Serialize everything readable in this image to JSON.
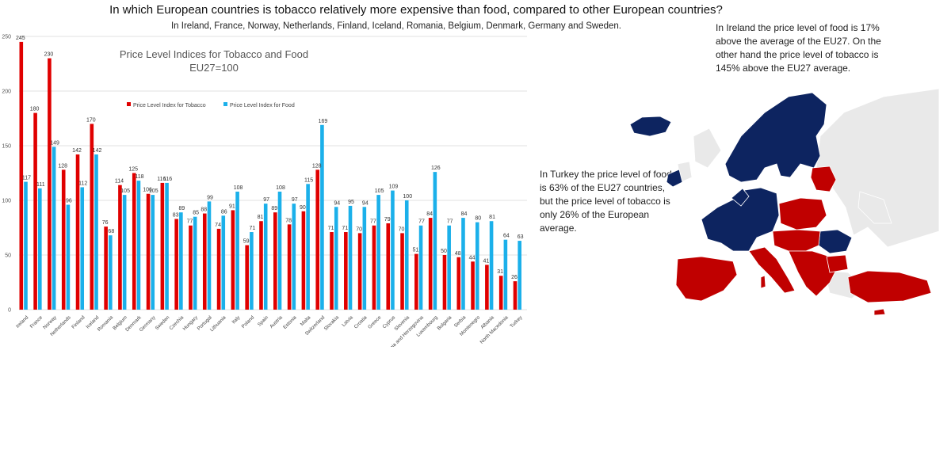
{
  "headline": "In which European countries is tobacco relatively more expensive than food, compared to other European countries?",
  "subheadline": "In Ireland, France, Norway, Netherlands, Finland, Iceland, Romania, Belgium, Denmark, Germany and Sweden.",
  "notes": {
    "ireland": "In Ireland the price level of food is 17% above the average of the EU27. On the other hand the price level of tobacco is 145% above the EU27 average.",
    "turkey": "In Turkey the price level of food is 63% of the EU27 countries, but the price level of tobacco is only 26% of the European average."
  },
  "colors": {
    "tobacco": "#e00000",
    "food": "#1bb0ea",
    "tobacco_map": "#c00000",
    "food_map": "#0d2460",
    "neutral_map": "#e9e9e9"
  },
  "chart_data": {
    "type": "bar",
    "title": "Price Level Indices for Tobacco and Food",
    "subtitle": "EU27=100",
    "ylim": [
      0,
      250
    ],
    "yticks": [
      0,
      50,
      100,
      150,
      200,
      250
    ],
    "grid": true,
    "legend": "top-left",
    "categories": [
      "Ireland",
      "France",
      "Norway",
      "Netherlands",
      "Finland",
      "Iceland",
      "Romania",
      "Belgium",
      "Denmark",
      "Germany",
      "Sweden",
      "Czechia",
      "Hungary",
      "Portugal",
      "Lithuania",
      "Italy",
      "Poland",
      "Spain",
      "Austria",
      "Estonia",
      "Malta",
      "Switzerland",
      "Slovakia",
      "Latvia",
      "Croatia",
      "Greece",
      "Cyprus",
      "Slovenia",
      "Bosnia and Herzegovina",
      "Luxembourg",
      "Bulgaria",
      "Serbia",
      "Montenegro",
      "Albania",
      "North Macedonia",
      "Turkey"
    ],
    "series": [
      {
        "name": "Price Level Index for Tobacco",
        "values": [
          245,
          180,
          230,
          128,
          142,
          170,
          76,
          114,
          125,
          106,
          116,
          83,
          77,
          88,
          74,
          91,
          59,
          81,
          89,
          78,
          90,
          128,
          71,
          71,
          70,
          77,
          79,
          70,
          51,
          84,
          50,
          48,
          44,
          41,
          31,
          26
        ]
      },
      {
        "name": "Price Level Index for Food",
        "values": [
          117,
          111,
          149,
          96,
          112,
          142,
          68,
          105,
          118,
          105,
          116,
          89,
          85,
          99,
          86,
          108,
          71,
          97,
          108,
          97,
          115,
          169,
          94,
          95,
          94,
          105,
          109,
          100,
          77,
          126,
          77,
          84,
          80,
          81,
          64,
          63
        ]
      }
    ]
  }
}
